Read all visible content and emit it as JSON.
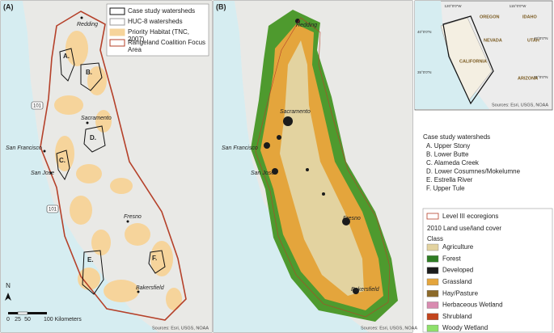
{
  "panel_a": {
    "label": "(A)",
    "legend": [
      {
        "name": "Case study watersheds",
        "fill": "#ffffff",
        "stroke": "#111111"
      },
      {
        "name": "HUC-8 watersheds",
        "fill": "#ffffff",
        "stroke": "#999999"
      },
      {
        "name": "Priority Habitat (TNC, 2007)",
        "fill": "#f6d49b",
        "stroke": "#f6d49b"
      },
      {
        "name": "Rangeland Coalition Focus Area",
        "fill": "#ffffff",
        "stroke": "#b5412a"
      }
    ],
    "cities": [
      "Redding",
      "Sacramento",
      "San Francisco",
      "San Jose",
      "Fresno",
      "Bakersfield"
    ],
    "watersheds": [
      "A.",
      "B.",
      "C.",
      "D.",
      "E.",
      "F."
    ],
    "highways": [
      "101",
      "101"
    ],
    "north": "N",
    "scale": [
      "0",
      "25",
      "50",
      "100 Kilometers"
    ],
    "source": "Sources: Esri, USGS, NOAA"
  },
  "panel_b": {
    "label": "(B)",
    "cities": [
      "Redding",
      "Sacramento",
      "San Francisco",
      "San Jose",
      "Fresno",
      "Bakersfield"
    ],
    "source": "Sources: Esri, USGS, NOAA"
  },
  "inset": {
    "coords": [
      "120°0'0\"W",
      "115°0'0\"W",
      "40°0'0\"N",
      "35°0'0\"N",
      "40°0'0\"N",
      "35°0'0\"N"
    ],
    "states": [
      "OREGON",
      "IDAHO",
      "NEVADA",
      "UTAH",
      "CALIFORNIA",
      "ARIZONA"
    ],
    "source": "Sources: Esri, USGS, NOAA"
  },
  "case_study": {
    "title": "Case study watersheds",
    "items": [
      "A. Upper Stony",
      "B. Lower Butte",
      "C. Alameda Creek",
      "D. Lower Cosumnes/Mokelumne",
      "E. Estrella River",
      "F. Upper Tule"
    ]
  },
  "land_cover": {
    "ecoregion": "Level III ecoregions",
    "title": "2010 Land use/land cover",
    "class_label": "Class",
    "classes": [
      {
        "name": "Agriculture",
        "color": "#e3d3a0"
      },
      {
        "name": "Forest",
        "color": "#2f7d24"
      },
      {
        "name": "Developed",
        "color": "#1b1b1b"
      },
      {
        "name": "Grassland",
        "color": "#e4a53c"
      },
      {
        "name": "Hay/Pasture",
        "color": "#8c6a2a"
      },
      {
        "name": "Herbaceous Wetland",
        "color": "#d98bb0"
      },
      {
        "name": "Shrubland",
        "color": "#c2451e"
      },
      {
        "name": "Woody Wetland",
        "color": "#8ee06a"
      }
    ]
  }
}
